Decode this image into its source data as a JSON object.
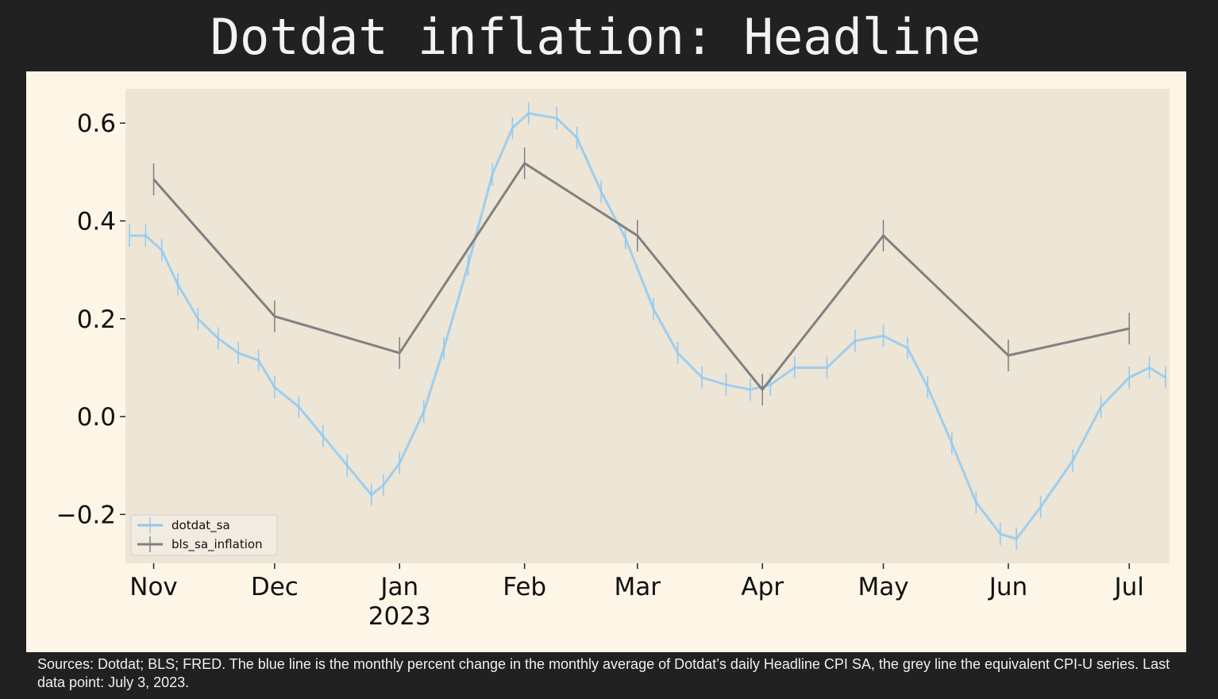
{
  "chart_data": {
    "type": "line",
    "title": "Dotdat inflation: Headline",
    "caption": "Sources: Dotdat; BLS; FRED. The blue line is the monthly percent change in the monthly average of Dotdat’s daily Headline CPI SA, the grey line the equivalent CPI-U series. Last data point: July 3, 2023.",
    "xlim": [
      "2022-10-25",
      "2023-07-11"
    ],
    "xticks": [
      {
        "value": "2022-11",
        "label": "Nov"
      },
      {
        "value": "2022-12",
        "label": "Dec"
      },
      {
        "value": "2023-01",
        "label": "Jan\n2023"
      },
      {
        "value": "2023-02",
        "label": "Feb"
      },
      {
        "value": "2023-03",
        "label": "Mar"
      },
      {
        "value": "2023-04",
        "label": "Apr"
      },
      {
        "value": "2023-05",
        "label": "May"
      },
      {
        "value": "2023-06",
        "label": "Jun"
      },
      {
        "value": "2023-07",
        "label": "Jul"
      }
    ],
    "ylim": [
      -0.3,
      0.67
    ],
    "yticks": [
      {
        "value": -0.2,
        "label": "−0.2"
      },
      {
        "value": 0,
        "label": "0.0"
      },
      0.2,
      0.4,
      0.6
    ],
    "marker": "|",
    "legend": "lower left",
    "series": [
      {
        "name": "dotdat_sa",
        "color": "#8ecaf2",
        "x": [
          "2022-10-26",
          "2022-10-30",
          "2022-11-03",
          "2022-11-07",
          "2022-11-12",
          "2022-11-17",
          "2022-11-22",
          "2022-11-27",
          "2022-12-01",
          "2022-12-07",
          "2022-12-13",
          "2022-12-19",
          "2022-12-25",
          "2022-12-28",
          "2023-01-01",
          "2023-01-07",
          "2023-01-12",
          "2023-01-18",
          "2023-01-24",
          "2023-01-29",
          "2023-02-02",
          "2023-02-09",
          "2023-02-14",
          "2023-02-20",
          "2023-02-26",
          "2023-03-05",
          "2023-03-11",
          "2023-03-17",
          "2023-03-23",
          "2023-03-29",
          "2023-04-03",
          "2023-04-09",
          "2023-04-17",
          "2023-04-24",
          "2023-05-01",
          "2023-05-07",
          "2023-05-12",
          "2023-05-18",
          "2023-05-24",
          "2023-05-30",
          "2023-06-03",
          "2023-06-09",
          "2023-06-17",
          "2023-06-24",
          "2023-07-01",
          "2023-07-06",
          "2023-07-10"
        ],
        "values": [
          0.37,
          0.37,
          0.34,
          0.27,
          0.2,
          0.16,
          0.13,
          0.115,
          0.06,
          0.02,
          -0.04,
          -0.1,
          -0.16,
          -0.14,
          -0.095,
          0.01,
          0.14,
          0.31,
          0.495,
          0.59,
          0.62,
          0.61,
          0.57,
          0.46,
          0.365,
          0.22,
          0.13,
          0.08,
          0.065,
          0.055,
          0.065,
          0.1,
          0.1,
          0.155,
          0.165,
          0.14,
          0.06,
          -0.055,
          -0.175,
          -0.24,
          -0.25,
          -0.185,
          -0.09,
          0.02,
          0.08,
          0.1,
          0.08
        ]
      },
      {
        "name": "bls_sa_inflation",
        "color": "#808080",
        "x": [
          "2022-11",
          "2022-12",
          "2023-01",
          "2023-02",
          "2023-03",
          "2023-04",
          "2023-05",
          "2023-06",
          "2023-07"
        ],
        "values": [
          0.485,
          0.205,
          0.13,
          0.518,
          0.37,
          0.055,
          0.37,
          0.125,
          0.18
        ]
      }
    ]
  }
}
